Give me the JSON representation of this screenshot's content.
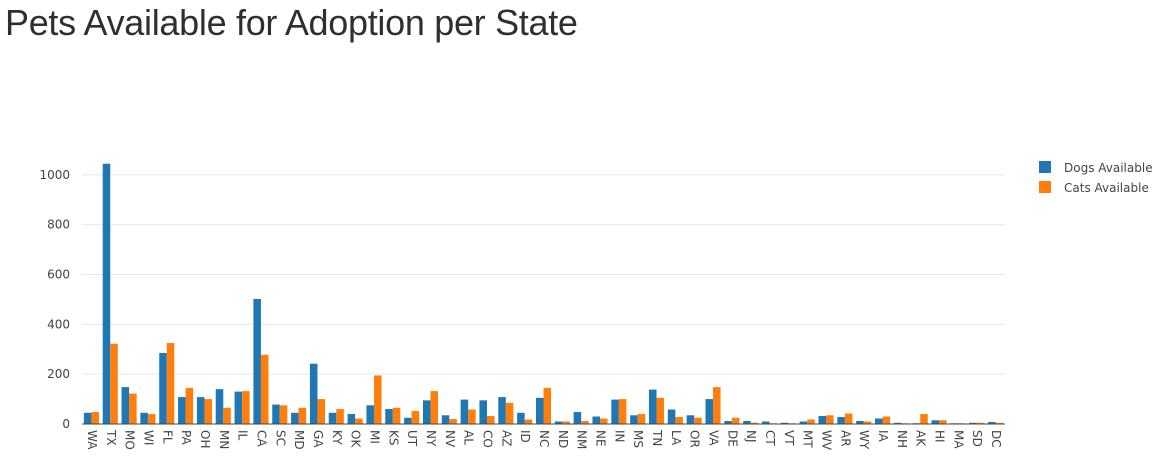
{
  "title": "Pets Available for Adoption per State",
  "chart_data": {
    "type": "bar",
    "title": "Pets Available for Adoption per State",
    "xlabel": "",
    "ylabel": "",
    "ylim": [
      0,
      1100
    ],
    "yticks": [
      0,
      200,
      400,
      600,
      800,
      1000
    ],
    "grid": true,
    "legend_position": "top-right",
    "categories": [
      "WA",
      "TX",
      "MO",
      "WI",
      "FL",
      "PA",
      "OH",
      "MN",
      "IL",
      "CA",
      "SC",
      "MD",
      "GA",
      "KY",
      "OK",
      "MI",
      "KS",
      "UT",
      "NY",
      "NV",
      "AL",
      "CO",
      "AZ",
      "ID",
      "NC",
      "ND",
      "NM",
      "NE",
      "IN",
      "MS",
      "TN",
      "LA",
      "OR",
      "VA",
      "DE",
      "NJ",
      "CT",
      "VT",
      "MT",
      "WV",
      "AR",
      "WY",
      "IA",
      "NH",
      "AK",
      "HI",
      "MA",
      "SD",
      "DC"
    ],
    "series": [
      {
        "name": "Dogs Available",
        "color": "#1f77b4",
        "values": [
          45,
          1045,
          148,
          45,
          285,
          108,
          108,
          140,
          130,
          502,
          78,
          45,
          242,
          45,
          40,
          75,
          60,
          25,
          95,
          35,
          98,
          95,
          108,
          45,
          105,
          10,
          48,
          30,
          98,
          35,
          138,
          58,
          35,
          100,
          12,
          12,
          10,
          5,
          10,
          32,
          28,
          12,
          22,
          5,
          3,
          15,
          3,
          5,
          8
        ]
      },
      {
        "name": "Cats Available",
        "color": "#ff7f0e",
        "values": [
          48,
          322,
          122,
          40,
          325,
          145,
          100,
          65,
          132,
          278,
          75,
          65,
          100,
          60,
          22,
          195,
          65,
          52,
          132,
          20,
          58,
          32,
          85,
          18,
          145,
          10,
          12,
          22,
          100,
          40,
          105,
          28,
          25,
          148,
          25,
          5,
          3,
          3,
          18,
          35,
          42,
          10,
          30,
          3,
          40,
          15,
          3,
          5,
          5
        ]
      }
    ]
  }
}
